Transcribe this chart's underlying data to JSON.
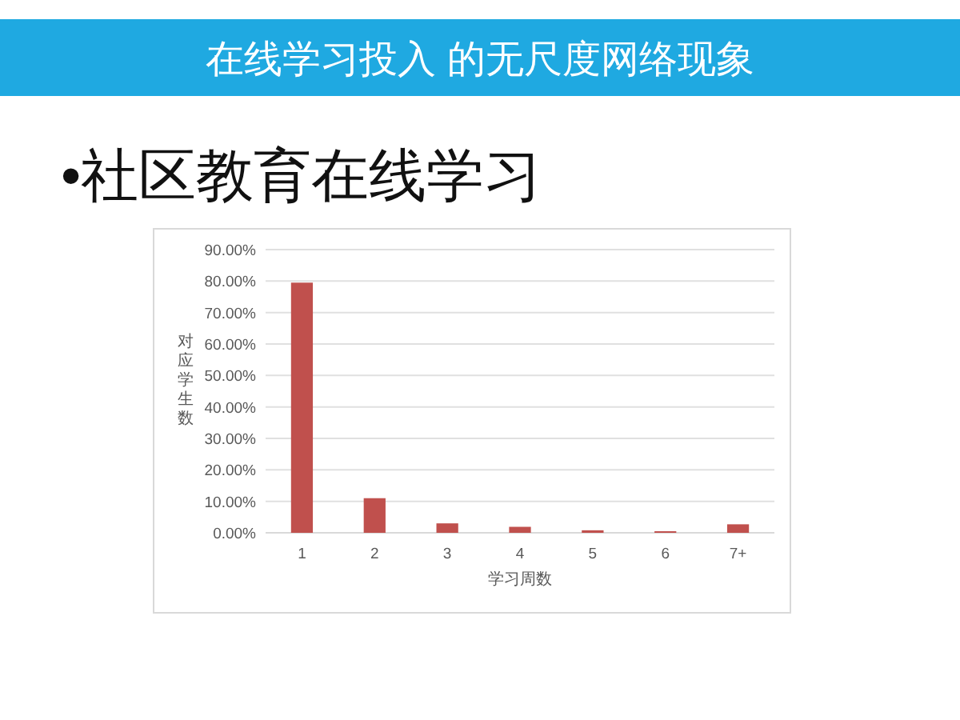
{
  "chart_data": {
    "type": "bar",
    "title": "在线学习投入 的无尺度网络现象",
    "subtitle": "•社区教育在线学习",
    "xlabel": "学习周数",
    "ylabel": "对应学生数",
    "categories": [
      "1",
      "2",
      "3",
      "4",
      "5",
      "6",
      "7+"
    ],
    "values": [
      79.5,
      11.0,
      3.0,
      1.9,
      0.8,
      0.5,
      2.7
    ],
    "color": "#c0504d",
    "ylim": [
      0,
      90
    ],
    "yticks": [
      {
        "value": 0,
        "label": "0.00%"
      },
      {
        "value": 10,
        "label": "10.00%"
      },
      {
        "value": 20,
        "label": "20.00%"
      },
      {
        "value": 30,
        "label": "30.00%"
      },
      {
        "value": 40,
        "label": "40.00%"
      },
      {
        "value": 50,
        "label": "50.00%"
      },
      {
        "value": 60,
        "label": "60.00%"
      },
      {
        "value": 70,
        "label": "70.00%"
      },
      {
        "value": 80,
        "label": "80.00%"
      },
      {
        "value": 90,
        "label": "90.00%"
      }
    ],
    "grid": "y"
  }
}
